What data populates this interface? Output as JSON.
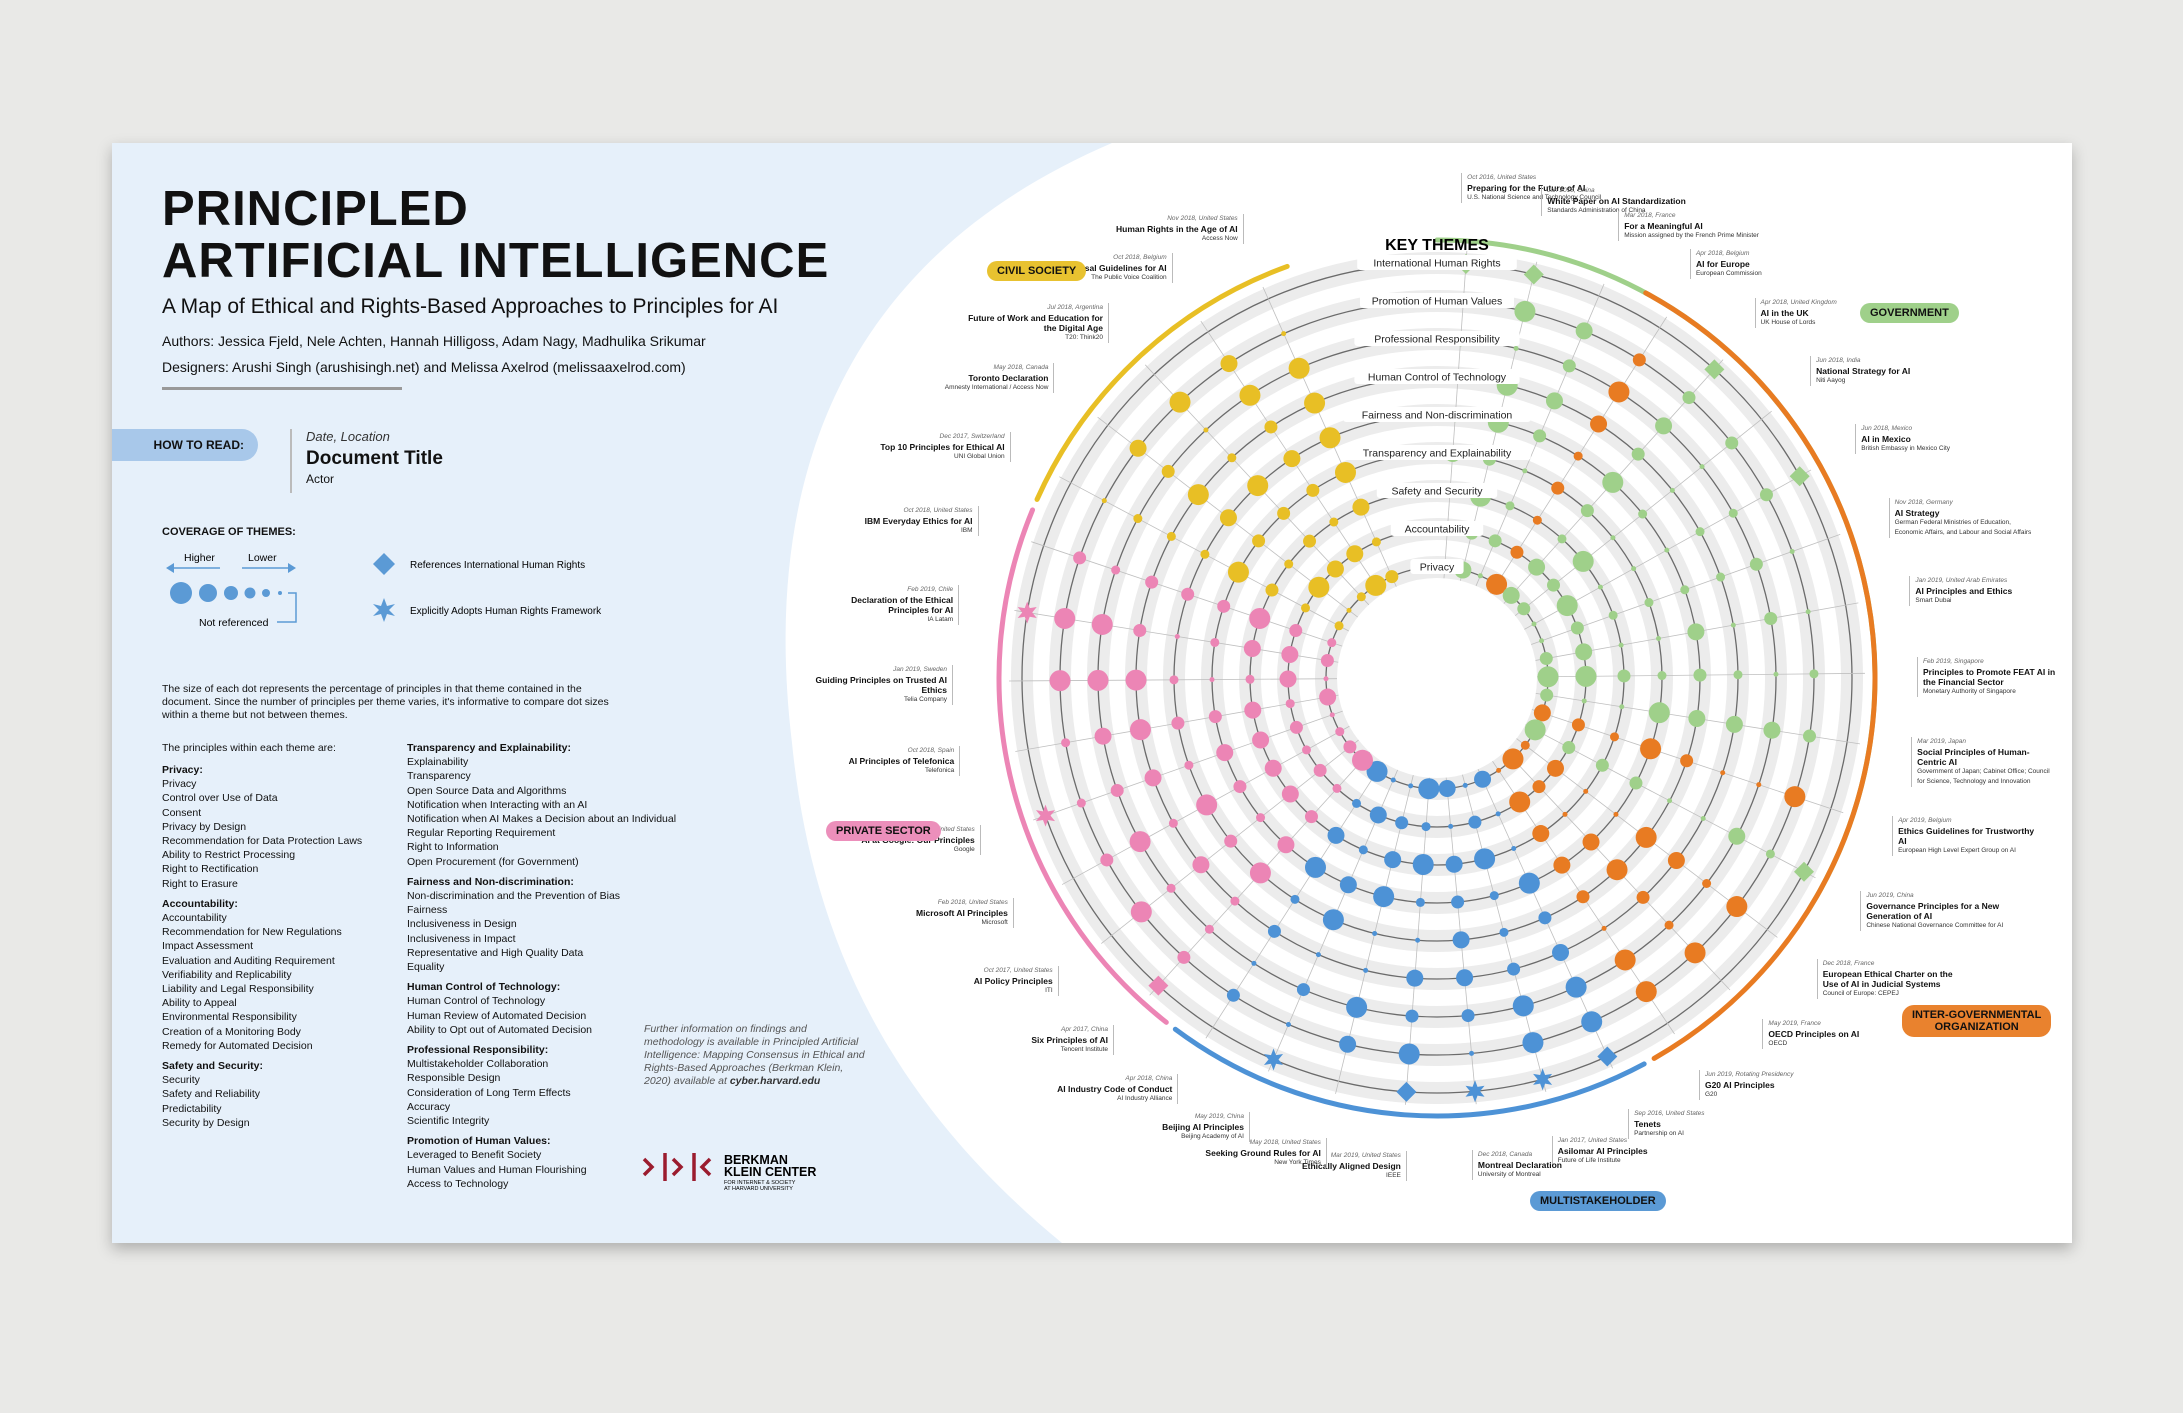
{
  "header": {
    "title": "PRINCIPLED\nARTIFICIAL INTELLIGENCE",
    "subtitle": "A Map of Ethical and Rights-Based Approaches to Principles for AI",
    "authors": "Authors: Jessica Fjeld, Nele Achten, Hannah Hilligoss, Adam Nagy, Madhulika Srikumar",
    "designers": "Designers: Arushi Singh (arushisingh.net) and Melissa Axelrod (melissaaxelrod.com)"
  },
  "how_to_read": {
    "label": "HOW TO READ:",
    "date_location": "Date, Location",
    "doc_title": "Document Title",
    "actor": "Actor"
  },
  "coverage": {
    "heading": "COVERAGE OF THEMES:",
    "higher": "Higher",
    "lower": "Lower",
    "not_referenced": "Not referenced",
    "ref_ihr": "References International Human Rights",
    "adopts_hr": "Explicitly Adopts Human Rights Framework"
  },
  "description": "The size of each dot represents the percentage of principles in that theme contained in the document. Since the number of principles per theme varies, it's informative to compare dot sizes within a theme but not between themes.",
  "principles_intro": "The principles within each theme are:",
  "principle_columns": [
    [
      {
        "h": "Privacy:",
        "items": [
          "Privacy",
          "Control over Use of Data",
          "Consent",
          "Privacy by Design",
          "Recommendation for Data Protection Laws",
          "Ability to Restrict Processing",
          "Right to Rectification",
          "Right to Erasure"
        ]
      },
      {
        "h": "Accountability:",
        "items": [
          "Accountability",
          "Recommendation for New Regulations",
          "Impact Assessment",
          "Evaluation and Auditing Requirement",
          "Verifiability and Replicability",
          "Liability and Legal Responsibility",
          "Ability to Appeal",
          "Environmental Responsibility",
          "Creation of a Monitoring Body",
          "Remedy for Automated Decision"
        ]
      },
      {
        "h": "Safety and Security:",
        "items": [
          "Security",
          "Safety and Reliability",
          "Predictability",
          "Security by Design"
        ]
      }
    ],
    [
      {
        "h": "Transparency and Explainability:",
        "items": [
          "Explainability",
          "Transparency",
          "Open Source Data and Algorithms",
          "Notification when Interacting with an AI",
          "Notification when AI Makes a Decision about an Individual",
          "Regular Reporting Requirement",
          "Right to Information",
          "Open Procurement (for Government)"
        ]
      },
      {
        "h": "Fairness and Non-discrimination:",
        "items": [
          "Non-discrimination and the Prevention of Bias",
          "Fairness",
          "Inclusiveness in Design",
          "Inclusiveness in Impact",
          "Representative and High Quality Data",
          "Equality"
        ]
      },
      {
        "h": "Human Control of Technology:",
        "items": [
          "Human Control of Technology",
          "Human Review of Automated Decision",
          "Ability to Opt out of Automated Decision"
        ]
      },
      {
        "h": "Professional Responsibility:",
        "items": [
          "Multistakeholder Collaboration",
          "Responsible Design",
          "Consideration of Long Term Effects",
          "Accuracy",
          "Scientific Integrity"
        ]
      },
      {
        "h": "Promotion of Human Values:",
        "items": [
          "Leveraged to Benefit Society",
          "Human Values and Human Flourishing",
          "Access to Technology"
        ]
      }
    ]
  ],
  "further_info": "Further information on findings and methodology is available in Principled Artificial Intelligence: Mapping Consensus in Ethical and Rights-Based Approaches (Berkman Klein, 2020) available at",
  "further_link": "cyber.harvard.edu",
  "logo": {
    "mark": ">|>|<",
    "name": "BERKMAN\nKLEIN CENTER",
    "sub": "FOR INTERNET & SOCIETY\nAT HARVARD UNIVERSITY"
  },
  "key_themes_title": "KEY THEMES",
  "themes": [
    "International Human Rights",
    "Promotion of Human Values",
    "Professional Responsibility",
    "Human Control of Technology",
    "Fairness and Non-discrimination",
    "Transparency and Explainability",
    "Safety and Security",
    "Accountability",
    "Privacy"
  ],
  "sectors": {
    "civil": {
      "label": "CIVIL SOCIETY",
      "color": "#e8c230"
    },
    "government": {
      "label": "GOVERNMENT",
      "color": "#9fd08a"
    },
    "private": {
      "label": "PRIVATE SECTOR",
      "color": "#ec8fbb"
    },
    "intergov": {
      "label": "INTER-GOVERNMENTAL\nORGANIZATION",
      "color": "#e9822e"
    },
    "multi": {
      "label": "MULTISTAKEHOLDER",
      "color": "#5b9ad5"
    }
  },
  "colors": {
    "civil": "#e8bf25",
    "government": "#9fd08a",
    "private": "#ec85b5",
    "intergov": "#e87b22",
    "multi": "#4d92d6",
    "panel": "#e6f0fa"
  },
  "documents": [
    {
      "d": "Oct 2016, United States",
      "t": "Preparing for the Future of AI",
      "a": "U.S. National Science and Technology Council",
      "s": "government"
    },
    {
      "d": "Jan 2018, China",
      "t": "White Paper on AI Standardization",
      "a": "Standards Administration of China",
      "s": "government"
    },
    {
      "d": "Mar 2018, France",
      "t": "For a Meaningful AI",
      "a": "Mission assigned by the French Prime Minister",
      "s": "government"
    },
    {
      "d": "Apr 2018, Belgium",
      "t": "AI for Europe",
      "a": "European Commission",
      "s": "intergov"
    },
    {
      "d": "Apr 2018, United Kingdom",
      "t": "AI in the UK",
      "a": "UK House of Lords",
      "s": "government"
    },
    {
      "d": "Jun 2018, India",
      "t": "National Strategy for AI",
      "a": "Niti Aayog",
      "s": "government"
    },
    {
      "d": "Jun 2018, Mexico",
      "t": "AI in Mexico",
      "a": "British Embassy in Mexico City",
      "s": "government"
    },
    {
      "d": "Nov 2018, Germany",
      "t": "AI Strategy",
      "a": "German Federal Ministries of Education, Economic Affairs, and Labour and Social Affairs",
      "s": "government"
    },
    {
      "d": "Jan 2019, United Arab Emirates",
      "t": "AI Principles and Ethics",
      "a": "Smart Dubai",
      "s": "government"
    },
    {
      "d": "Feb 2019, Singapore",
      "t": "Principles to Promote FEAT AI in the Financial Sector",
      "a": "Monetary Authority of Singapore",
      "s": "government"
    },
    {
      "d": "Mar 2019, Japan",
      "t": "Social Principles of Human-Centric AI",
      "a": "Government of Japan; Cabinet Office; Council for Science, Technology and Innovation",
      "s": "government"
    },
    {
      "d": "Apr 2019, Belgium",
      "t": "Ethics Guidelines for Trustworthy AI",
      "a": "European High Level Expert Group on AI",
      "s": "intergov"
    },
    {
      "d": "Jun 2019, China",
      "t": "Governance Principles for a New Generation of AI",
      "a": "Chinese National Governance Committee for AI",
      "s": "government"
    },
    {
      "d": "Dec 2018, France",
      "t": "European Ethical Charter on the Use of AI in Judicial Systems",
      "a": "Council of Europe: CEPEJ",
      "s": "intergov"
    },
    {
      "d": "May 2019, France",
      "t": "OECD Principles on AI",
      "a": "OECD",
      "s": "intergov"
    },
    {
      "d": "Jun 2019, Rotating Presidency",
      "t": "G20 AI Principles",
      "a": "G20",
      "s": "intergov"
    },
    {
      "d": "Sep 2016, United States",
      "t": "Tenets",
      "a": "Partnership on AI",
      "s": "multi"
    },
    {
      "d": "Jan 2017, United States",
      "t": "Asilomar AI Principles",
      "a": "Future of Life Institute",
      "s": "multi"
    },
    {
      "d": "Dec 2018, Canada",
      "t": "Montreal Declaration",
      "a": "University of Montreal",
      "s": "multi"
    },
    {
      "d": "Mar 2019, United States",
      "t": "Ethically Aligned Design",
      "a": "IEEE",
      "s": "multi"
    },
    {
      "d": "May 2018, United States",
      "t": "Seeking Ground Rules for AI",
      "a": "New York Times",
      "s": "multi"
    },
    {
      "d": "May 2019, China",
      "t": "Beijing AI Principles",
      "a": "Beijing Academy of AI",
      "s": "multi"
    },
    {
      "d": "Apr 2018, China",
      "t": "AI Industry Code of Conduct",
      "a": "AI Industry Alliance",
      "s": "multi"
    },
    {
      "d": "Apr 2017, China",
      "t": "Six Principles of AI",
      "a": "Tencent Institute",
      "s": "private"
    },
    {
      "d": "Oct 2017, United States",
      "t": "AI Policy Principles",
      "a": "ITI",
      "s": "private"
    },
    {
      "d": "Feb 2018, United States",
      "t": "Microsoft AI Principles",
      "a": "Microsoft",
      "s": "private"
    },
    {
      "d": "Jun 2018, United States",
      "t": "AI at Google: Our Principles",
      "a": "Google",
      "s": "private"
    },
    {
      "d": "Oct 2018, Spain",
      "t": "AI Principles of Telefonica",
      "a": "Telefonica",
      "s": "private"
    },
    {
      "d": "Jan 2019, Sweden",
      "t": "Guiding Principles on Trusted AI Ethics",
      "a": "Telia Company",
      "s": "private"
    },
    {
      "d": "Feb 2019, Chile",
      "t": "Declaration of the Ethical Principles for AI",
      "a": "IA Latam",
      "s": "private"
    },
    {
      "d": "Oct 2018, United States",
      "t": "IBM Everyday Ethics for AI",
      "a": "IBM",
      "s": "private"
    },
    {
      "d": "Dec 2017, Switzerland",
      "t": "Top 10 Principles for Ethical AI",
      "a": "UNI Global Union",
      "s": "civil"
    },
    {
      "d": "May 2018, Canada",
      "t": "Toronto Declaration",
      "a": "Amnesty International / Access Now",
      "s": "civil"
    },
    {
      "d": "Jul 2018, Argentina",
      "t": "Future of Work and Education for the Digital Age",
      "a": "T20: Think20",
      "s": "civil"
    },
    {
      "d": "Oct 2018, Belgium",
      "t": "Universal Guidelines for AI",
      "a": "The Public Voice Coalition",
      "s": "civil"
    },
    {
      "d": "Nov 2018, United States",
      "t": "Human Rights in the Age of AI",
      "a": "Access Now",
      "s": "civil"
    }
  ]
}
